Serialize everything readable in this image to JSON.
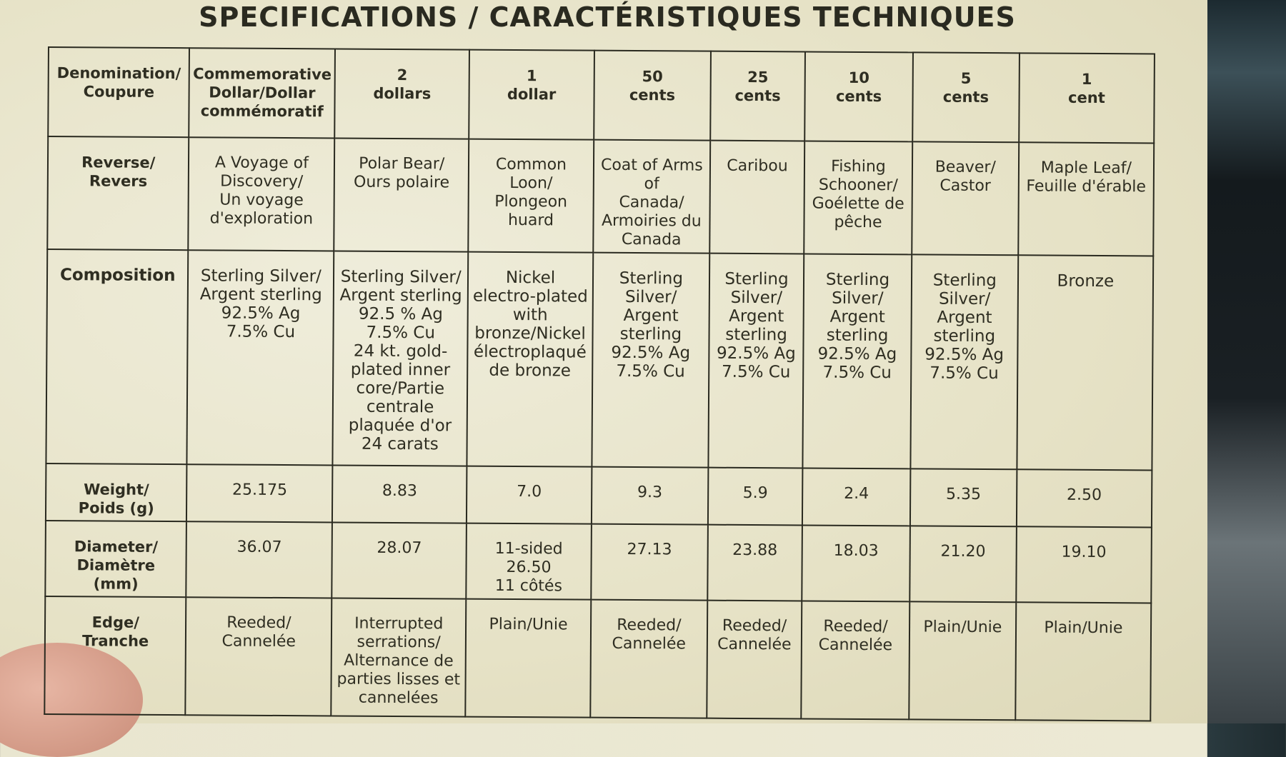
{
  "title": "SPECIFICATIONS / CARACTÉRISTIQUES TECHNIQUES",
  "rows": [
    {
      "label": "Denomination/\nCoupure",
      "cells": [
        "Commemorative\nDollar/Dollar\ncommémoratif",
        "2\ndollars",
        "1\ndollar",
        "50\ncents",
        "25\ncents",
        "10\ncents",
        "5\ncents",
        "1\ncent"
      ]
    },
    {
      "label": "Reverse/\nRevers",
      "cells": [
        "A Voyage of\nDiscovery/\nUn voyage\nd'exploration",
        "Polar Bear/\nOurs polaire",
        "Common Loon/\nPlongeon huard",
        "Coat of Arms of\nCanada/\nArmoiries du\nCanada",
        "Caribou",
        "Fishing\nSchooner/\nGoélette de\npêche",
        "Beaver/\nCastor",
        "Maple Leaf/\nFeuille d'érable"
      ]
    },
    {
      "label": "Composition",
      "cells": [
        "Sterling Silver/\nArgent sterling\n92.5% Ag\n7.5% Cu",
        "Sterling Silver/\nArgent sterling\n92.5 % Ag\n7.5% Cu\n24 kt. gold-\nplated inner\ncore/Partie\ncentrale\nplaquée d'or\n24 carats",
        "Nickel\nelectro-plated\nwith\nbronze/Nickel\nélectroplaqué\nde bronze",
        "Sterling\nSilver/\nArgent\nsterling\n92.5% Ag\n7.5% Cu",
        "Sterling\nSilver/\nArgent\nsterling\n92.5% Ag\n7.5% Cu",
        "Sterling\nSilver/\nArgent\nsterling\n92.5% Ag\n7.5% Cu",
        "Sterling\nSilver/\nArgent\nsterling\n92.5% Ag\n7.5% Cu",
        "Bronze"
      ]
    },
    {
      "label": "Weight/\nPoids (g)",
      "cells": [
        "25.175",
        "8.83",
        "7.0",
        "9.3",
        "5.9",
        "2.4",
        "5.35",
        "2.50"
      ]
    },
    {
      "label": "Diameter/\nDiamètre\n(mm)",
      "cells": [
        "36.07",
        "28.07",
        "11-sided\n26.50\n11 côtés",
        "27.13",
        "23.88",
        "18.03",
        "21.20",
        "19.10"
      ]
    },
    {
      "label": "Edge/\nTranche",
      "cells": [
        "Reeded/\nCannelée",
        "Interrupted\nserrations/\nAlternance de\nparties lisses et\ncannelées",
        "Plain/Unie",
        "Reeded/\nCannelée",
        "Reeded/\nCannelée",
        "Reeded/\nCannelée",
        "Plain/Unie",
        "Plain/Unie"
      ]
    }
  ]
}
